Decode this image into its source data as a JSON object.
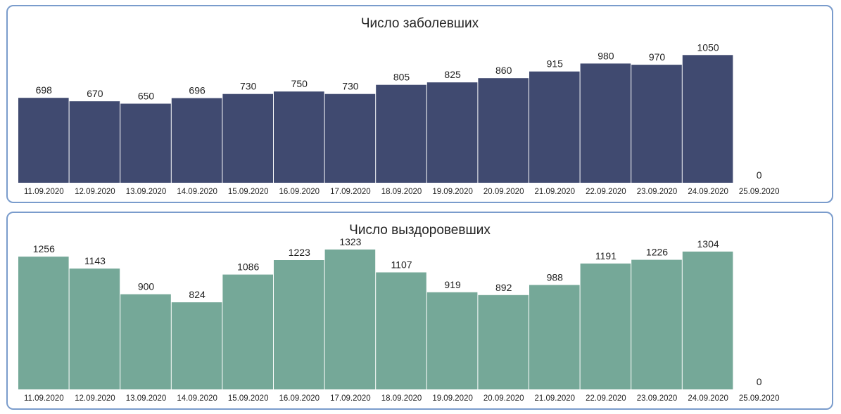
{
  "chart_data": [
    {
      "type": "bar",
      "title": "Число заболевших",
      "categories": [
        "11.09.2020",
        "12.09.2020",
        "13.09.2020",
        "14.09.2020",
        "15.09.2020",
        "16.09.2020",
        "17.09.2020",
        "18.09.2020",
        "19.09.2020",
        "20.09.2020",
        "21.09.2020",
        "22.09.2020",
        "23.09.2020",
        "24.09.2020",
        "25.09.2020"
      ],
      "values": [
        698,
        670,
        650,
        696,
        730,
        750,
        730,
        805,
        825,
        860,
        915,
        980,
        970,
        1050,
        0
      ],
      "color": "#404a70",
      "ylim": [
        0,
        1150
      ],
      "xlabel": "",
      "ylabel": "",
      "grid": false
    },
    {
      "type": "bar",
      "title": "Число выздоровевших",
      "categories": [
        "11.09.2020",
        "12.09.2020",
        "13.09.2020",
        "14.09.2020",
        "15.09.2020",
        "16.09.2020",
        "17.09.2020",
        "18.09.2020",
        "19.09.2020",
        "20.09.2020",
        "21.09.2020",
        "22.09.2020",
        "23.09.2020",
        "24.09.2020",
        "25.09.2020"
      ],
      "values": [
        1256,
        1143,
        900,
        824,
        1086,
        1223,
        1323,
        1107,
        919,
        892,
        988,
        1191,
        1226,
        1304,
        0
      ],
      "color": "#75a898",
      "ylim": [
        0,
        1323
      ],
      "xlabel": "",
      "ylabel": "",
      "grid": false
    }
  ]
}
